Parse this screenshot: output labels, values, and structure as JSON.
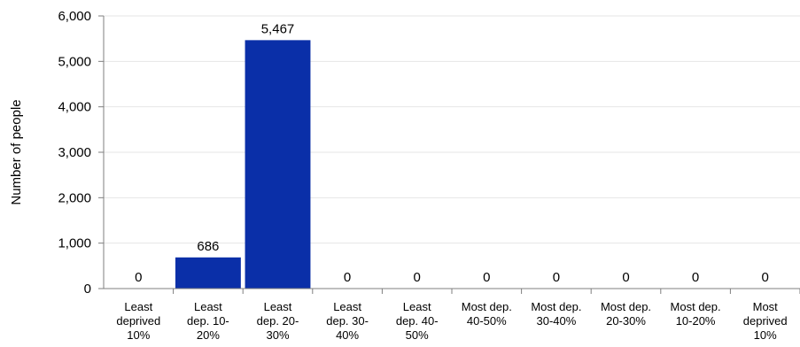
{
  "chart_data": {
    "type": "bar",
    "title": "",
    "xlabel": "",
    "ylabel": "Number of people",
    "ylim": [
      0,
      6000
    ],
    "yticks": [
      0,
      1000,
      2000,
      3000,
      4000,
      5000,
      6000
    ],
    "ytick_labels": [
      "0",
      "1,000",
      "2,000",
      "3,000",
      "4,000",
      "5,000",
      "6,000"
    ],
    "categories": [
      [
        "Least",
        "deprived",
        "10%"
      ],
      [
        "Least",
        "dep. 10-",
        "20%"
      ],
      [
        "Least",
        "dep. 20-",
        "30%"
      ],
      [
        "Least",
        "dep. 30-",
        "40%"
      ],
      [
        "Least",
        "dep. 40-",
        "50%"
      ],
      [
        "Most dep.",
        "40-50%"
      ],
      [
        "Most dep.",
        "30-40%"
      ],
      [
        "Most dep.",
        "20-30%"
      ],
      [
        "Most dep.",
        "10-20%"
      ],
      [
        "Most",
        "deprived",
        "10%"
      ]
    ],
    "values": [
      0,
      686,
      5467,
      0,
      0,
      0,
      0,
      0,
      0,
      0
    ],
    "value_labels": [
      "0",
      "686",
      "5,467",
      "0",
      "0",
      "0",
      "0",
      "0",
      "0",
      "0"
    ],
    "grid": true,
    "bar_color": "#0a2fa8",
    "grid_color": "#e6e6e6",
    "axis_color": "#7f7f7f"
  }
}
